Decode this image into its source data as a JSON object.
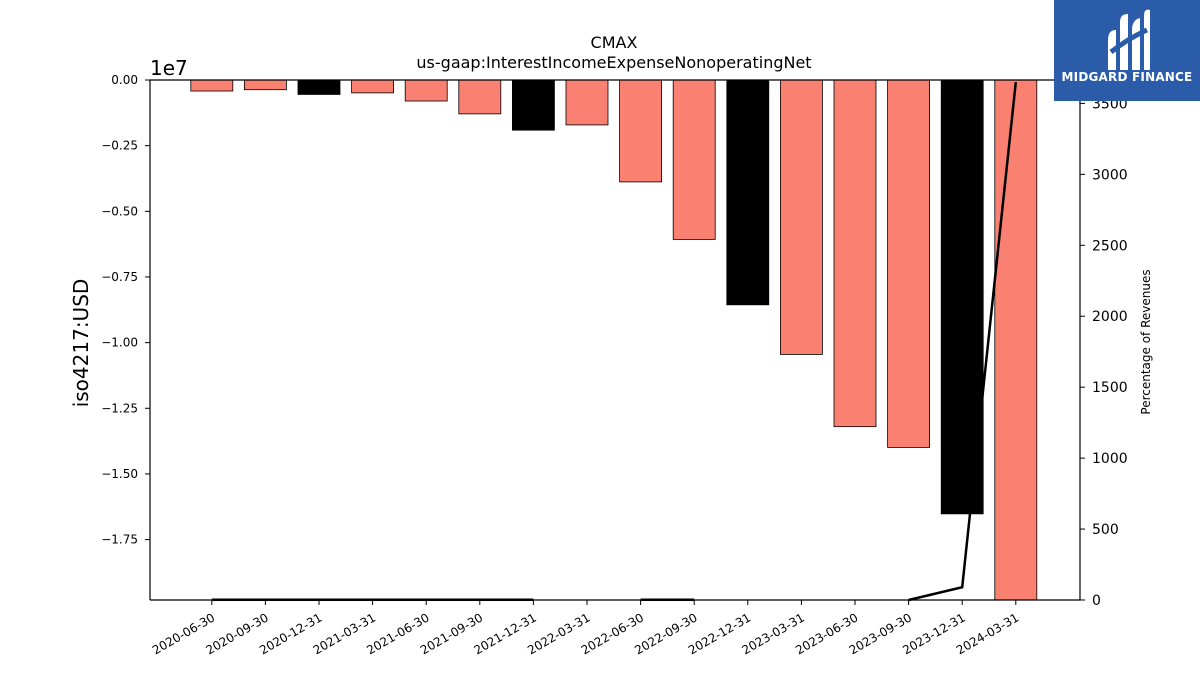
{
  "chart_data": {
    "type": "bar",
    "title": "CMAX",
    "subtitle": "us-gaap:InterestIncomeExpenseNonoperatingNet",
    "ylabel": "iso4217:USD",
    "y2label": "Percentage of Revenues",
    "y_multiplier_label": "1e7",
    "categories": [
      "2020-06-30",
      "2020-09-30",
      "2020-12-31",
      "2021-03-31",
      "2021-06-30",
      "2021-09-30",
      "2021-12-31",
      "2022-03-31",
      "2022-06-30",
      "2022-09-30",
      "2022-12-31",
      "2023-03-31",
      "2023-06-30",
      "2023-09-30",
      "2023-12-31",
      "2024-03-31"
    ],
    "series": [
      {
        "values": [
          -420000,
          -370000,
          -550000,
          -490000,
          -800000,
          -1290000,
          -1910000,
          -1710000,
          -3880000,
          -6070000,
          -8560000,
          -10450000,
          -13200000,
          -13990000,
          -16520000,
          -19800000
        ],
        "bar_colors": [
          "#fa8072",
          "#fa8072",
          "#000000",
          "#fa8072",
          "#fa8072",
          "#fa8072",
          "#000000",
          "#fa8072",
          "#fa8072",
          "#fa8072",
          "#000000",
          "#fa8072",
          "#fa8072",
          "#fa8072",
          "#000000",
          "#fa8072"
        ]
      }
    ],
    "line_series": {
      "axis": "right",
      "values": [
        2,
        2,
        2,
        2,
        2,
        2,
        2,
        null,
        2,
        2,
        null,
        null,
        null,
        0,
        90,
        3650
      ]
    },
    "ylim": [
      -19800000,
      0
    ],
    "yticks": [
      0,
      -2500000,
      -5000000,
      -7500000,
      -10000000,
      -12500000,
      -15000000,
      -17500000
    ],
    "ytick_labels": [
      "0.00",
      "−0.25",
      "−0.50",
      "−0.75",
      "−1.00",
      "−1.25",
      "−1.50",
      "−1.75"
    ],
    "y2lim": [
      0,
      3665
    ],
    "y2ticks": [
      0,
      500,
      1000,
      1500,
      2000,
      2500,
      3000,
      3500
    ],
    "y2tick_labels": [
      "0",
      "500",
      "1000",
      "1500",
      "2000",
      "2500",
      "3000",
      "3500"
    ],
    "grid": false,
    "legend": "none"
  },
  "logo": {
    "text": "MIDGARD FINANCE",
    "icon": "midgard-logo-icon"
  },
  "colors": {
    "primary_bar": "#fa8072",
    "highlight_bar": "#000000",
    "logo_bg": "#2a5caa"
  }
}
